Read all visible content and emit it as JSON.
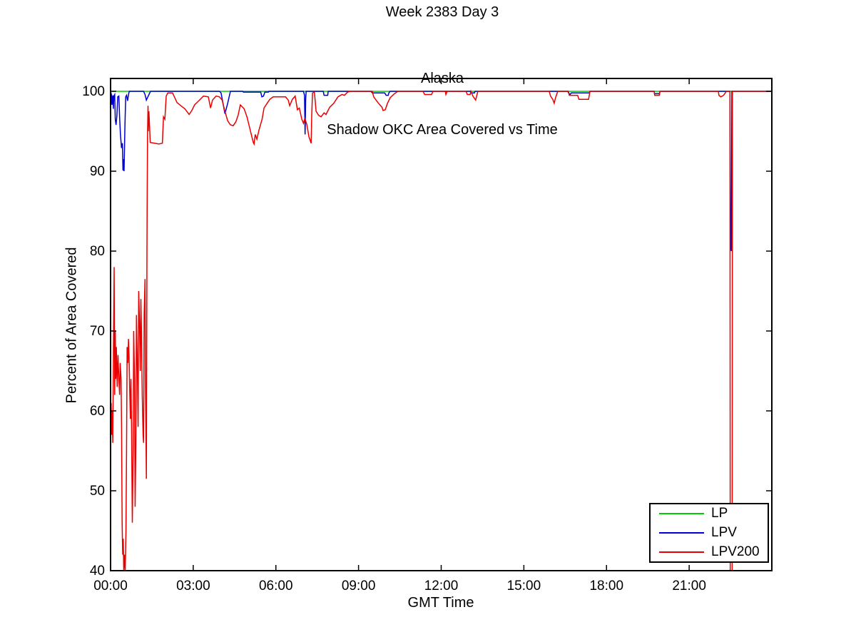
{
  "chart_data": {
    "type": "line",
    "suptitle": "Week 2383 Day 3",
    "subtitle_line1": "Alaska",
    "title": "Shadow OKC Area Covered vs Time",
    "xlabel": "GMT Time",
    "ylabel": "Percent of Area Covered",
    "x_unit": "hours GMT",
    "xlim": [
      0,
      24
    ],
    "ylim": [
      40,
      100
    ],
    "grid": false,
    "legend_position": "lower right",
    "frame_color": "#000000",
    "x_ticks": [
      {
        "t": 0,
        "label": "00:00"
      },
      {
        "t": 3,
        "label": "03:00"
      },
      {
        "t": 6,
        "label": "06:00"
      },
      {
        "t": 9,
        "label": "09:00"
      },
      {
        "t": 12,
        "label": "12:00"
      },
      {
        "t": 15,
        "label": "15:00"
      },
      {
        "t": 18,
        "label": "18:00"
      },
      {
        "t": 21,
        "label": "21:00"
      },
      {
        "t": 24,
        "label": ""
      }
    ],
    "y_ticks": [
      {
        "v": 100,
        "label": "100"
      },
      {
        "v": 90,
        "label": "90"
      },
      {
        "v": 80,
        "label": "80"
      },
      {
        "v": 70,
        "label": "70"
      },
      {
        "v": 60,
        "label": "60"
      },
      {
        "v": 50,
        "label": "50"
      },
      {
        "v": 40,
        "label": "40"
      }
    ],
    "series": [
      {
        "name": "LP",
        "color": "#00CC00",
        "points": [
          [
            0,
            100
          ],
          [
            24,
            100
          ]
        ]
      },
      {
        "name": "LPV",
        "color": "#0000CC",
        "points": [
          [
            0,
            100
          ],
          [
            0.03,
            99.6
          ],
          [
            0.05,
            98.3
          ],
          [
            0.08,
            99.5
          ],
          [
            0.1,
            97.8
          ],
          [
            0.12,
            99.4
          ],
          [
            0.15,
            99.6
          ],
          [
            0.17,
            96.5
          ],
          [
            0.2,
            95.8
          ],
          [
            0.23,
            97
          ],
          [
            0.26,
            99.3
          ],
          [
            0.3,
            99.4
          ],
          [
            0.33,
            96.7
          ],
          [
            0.36,
            94.5
          ],
          [
            0.4,
            92.9
          ],
          [
            0.43,
            93.5
          ],
          [
            0.45,
            90.1
          ],
          [
            0.47,
            91.5
          ],
          [
            0.49,
            90
          ],
          [
            0.52,
            95.5
          ],
          [
            0.55,
            99.3
          ],
          [
            0.58,
            99.5
          ],
          [
            0.62,
            98.8
          ],
          [
            0.65,
            99.6
          ],
          [
            0.68,
            100
          ],
          [
            1.2,
            100
          ],
          [
            1.25,
            99.6
          ],
          [
            1.3,
            98.9
          ],
          [
            1.38,
            99.5
          ],
          [
            1.45,
            100
          ],
          [
            3.95,
            100
          ],
          [
            4.01,
            99.8
          ],
          [
            4.08,
            98.5
          ],
          [
            4.15,
            97.2
          ],
          [
            4.25,
            98.5
          ],
          [
            4.35,
            100
          ],
          [
            4.79,
            100
          ],
          [
            4.82,
            99.9
          ],
          [
            5.45,
            99.9
          ],
          [
            5.49,
            99.3
          ],
          [
            5.55,
            99.4
          ],
          [
            5.6,
            99.9
          ],
          [
            5.73,
            99.9
          ],
          [
            5.75,
            100
          ],
          [
            7,
            100
          ],
          [
            7.04,
            99.5
          ],
          [
            7.06,
            94.6
          ],
          [
            7.08,
            99
          ],
          [
            7.1,
            100
          ],
          [
            7.72,
            100
          ],
          [
            7.75,
            99.5
          ],
          [
            7.88,
            99.5
          ],
          [
            7.9,
            100
          ],
          [
            9.45,
            100
          ],
          [
            9.5,
            99.8
          ],
          [
            9.95,
            99.8
          ],
          [
            10,
            99.5
          ],
          [
            10.08,
            99.5
          ],
          [
            10.1,
            99.8
          ],
          [
            10.15,
            100
          ],
          [
            13.05,
            100
          ],
          [
            13.08,
            99.8
          ],
          [
            13.21,
            99.8
          ],
          [
            13.23,
            100
          ],
          [
            16.6,
            100
          ],
          [
            16.62,
            99.8
          ],
          [
            16.68,
            99.6
          ],
          [
            16.72,
            99.8
          ],
          [
            17.38,
            99.8
          ],
          [
            17.4,
            100
          ],
          [
            19.73,
            100
          ],
          [
            19.74,
            99.7
          ],
          [
            19.92,
            99.7
          ],
          [
            19.94,
            100
          ],
          [
            22.48,
            100
          ],
          [
            22.5,
            80.5
          ],
          [
            22.53,
            80
          ],
          [
            22.55,
            100
          ],
          [
            24,
            100
          ]
        ]
      },
      {
        "name": "LPV200",
        "color": "#E80000",
        "points": [
          [
            0,
            56
          ],
          [
            0.02,
            61
          ],
          [
            0.04,
            57
          ],
          [
            0.06,
            60
          ],
          [
            0.08,
            56
          ],
          [
            0.1,
            66
          ],
          [
            0.13,
            78
          ],
          [
            0.15,
            62
          ],
          [
            0.17,
            70
          ],
          [
            0.19,
            64
          ],
          [
            0.21,
            68
          ],
          [
            0.24,
            63
          ],
          [
            0.27,
            67
          ],
          [
            0.3,
            64
          ],
          [
            0.33,
            62
          ],
          [
            0.35,
            66
          ],
          [
            0.38,
            64
          ],
          [
            0.4,
            58
          ],
          [
            0.42,
            46
          ],
          [
            0.44,
            42
          ],
          [
            0.46,
            44
          ],
          [
            0.48,
            40
          ],
          [
            0.51,
            42
          ],
          [
            0.53,
            40
          ],
          [
            0.56,
            45
          ],
          [
            0.58,
            55
          ],
          [
            0.6,
            68
          ],
          [
            0.63,
            66
          ],
          [
            0.65,
            69
          ],
          [
            0.67,
            67
          ],
          [
            0.7,
            62
          ],
          [
            0.72,
            59
          ],
          [
            0.74,
            64
          ],
          [
            0.76,
            58
          ],
          [
            0.79,
            46
          ],
          [
            0.82,
            55
          ],
          [
            0.84,
            70
          ],
          [
            0.87,
            64
          ],
          [
            0.89,
            48
          ],
          [
            0.92,
            56
          ],
          [
            0.94,
            72
          ],
          [
            0.97,
            66
          ],
          [
            1,
            58
          ],
          [
            1.02,
            75
          ],
          [
            1.05,
            71
          ],
          [
            1.08,
            65
          ],
          [
            1.1,
            74
          ],
          [
            1.12,
            70
          ],
          [
            1.15,
            62
          ],
          [
            1.18,
            57
          ],
          [
            1.2,
            56
          ],
          [
            1.22,
            72
          ],
          [
            1.25,
            76.5
          ],
          [
            1.27,
            62
          ],
          [
            1.3,
            51.5
          ],
          [
            1.32,
            80
          ],
          [
            1.33,
            88
          ],
          [
            1.34,
            94.3
          ],
          [
            1.36,
            98.2
          ],
          [
            1.37,
            95
          ],
          [
            1.39,
            97.5
          ],
          [
            1.41,
            96
          ],
          [
            1.44,
            93.6
          ],
          [
            1.6,
            93.5
          ],
          [
            1.75,
            93.4
          ],
          [
            1.88,
            93.5
          ],
          [
            1.92,
            96.8
          ],
          [
            1.97,
            96.5
          ],
          [
            2.02,
            99.4
          ],
          [
            2.08,
            99.8
          ],
          [
            2.25,
            99.8
          ],
          [
            2.41,
            98.6
          ],
          [
            2.55,
            98.2
          ],
          [
            2.7,
            97.8
          ],
          [
            2.85,
            97.1
          ],
          [
            2.95,
            97.6
          ],
          [
            3.05,
            98.3
          ],
          [
            3.2,
            98.8
          ],
          [
            3.37,
            99.4
          ],
          [
            3.55,
            99.3
          ],
          [
            3.63,
            97.9
          ],
          [
            3.7,
            98.9
          ],
          [
            3.83,
            99.4
          ],
          [
            3.95,
            99.3
          ],
          [
            4.05,
            98.9
          ],
          [
            4.15,
            97.5
          ],
          [
            4.25,
            96.3
          ],
          [
            4.35,
            95.8
          ],
          [
            4.45,
            95.7
          ],
          [
            4.55,
            96.2
          ],
          [
            4.63,
            97
          ],
          [
            4.71,
            98.3
          ],
          [
            4.85,
            97.8
          ],
          [
            4.95,
            96.8
          ],
          [
            5.05,
            95.4
          ],
          [
            5.1,
            94.7
          ],
          [
            5.18,
            93.6
          ],
          [
            5.21,
            93.4
          ],
          [
            5.25,
            94.6
          ],
          [
            5.31,
            94
          ],
          [
            5.39,
            95.2
          ],
          [
            5.5,
            96.5
          ],
          [
            5.57,
            97.9
          ],
          [
            5.7,
            98.6
          ],
          [
            5.78,
            99
          ],
          [
            5.9,
            99.3
          ],
          [
            6.35,
            99.3
          ],
          [
            6.45,
            98.9
          ],
          [
            6.5,
            98.2
          ],
          [
            6.6,
            99
          ],
          [
            6.7,
            99.4
          ],
          [
            6.78,
            97.7
          ],
          [
            6.85,
            97.9
          ],
          [
            6.94,
            96.5
          ],
          [
            7,
            96
          ],
          [
            7.05,
            96.6
          ],
          [
            7.12,
            95.9
          ],
          [
            7.2,
            94.3
          ],
          [
            7.28,
            93.5
          ],
          [
            7.3,
            97
          ],
          [
            7.33,
            99.8
          ],
          [
            7.4,
            99.9
          ],
          [
            7.46,
            97.5
          ],
          [
            7.55,
            97
          ],
          [
            7.64,
            96.8
          ],
          [
            7.75,
            97.3
          ],
          [
            7.82,
            97.1
          ],
          [
            7.95,
            98
          ],
          [
            8.1,
            98.5
          ],
          [
            8.25,
            99.3
          ],
          [
            8.4,
            99.6
          ],
          [
            8.49,
            99.5
          ],
          [
            8.6,
            99.9
          ],
          [
            8.7,
            100
          ],
          [
            9.5,
            100
          ],
          [
            9.55,
            99.3
          ],
          [
            9.7,
            98.6
          ],
          [
            9.85,
            98
          ],
          [
            9.89,
            97.6
          ],
          [
            9.97,
            97.7
          ],
          [
            10.05,
            98.5
          ],
          [
            10.15,
            99.2
          ],
          [
            10.3,
            99.7
          ],
          [
            10.43,
            100
          ],
          [
            11.34,
            100
          ],
          [
            11.4,
            99.6
          ],
          [
            11.65,
            99.6
          ],
          [
            11.7,
            100
          ],
          [
            12.15,
            100
          ],
          [
            12.17,
            99.6
          ],
          [
            12.22,
            100
          ],
          [
            12.9,
            100
          ],
          [
            12.95,
            99.6
          ],
          [
            13.05,
            99.6
          ],
          [
            13.08,
            100
          ],
          [
            13.15,
            99.4
          ],
          [
            13.25,
            98.9
          ],
          [
            13.33,
            100
          ],
          [
            15.92,
            100
          ],
          [
            15.97,
            99.4
          ],
          [
            16.05,
            99
          ],
          [
            16.1,
            98.5
          ],
          [
            16.15,
            99.2
          ],
          [
            16.23,
            100
          ],
          [
            16.62,
            100
          ],
          [
            16.65,
            99.5
          ],
          [
            16.95,
            99.5
          ],
          [
            17,
            99
          ],
          [
            17.35,
            99
          ],
          [
            17.4,
            100
          ],
          [
            19.73,
            100
          ],
          [
            19.75,
            99.5
          ],
          [
            19.92,
            99.5
          ],
          [
            19.94,
            100
          ],
          [
            22.06,
            100
          ],
          [
            22.08,
            99.5
          ],
          [
            22.15,
            99.3
          ],
          [
            22.25,
            99.5
          ],
          [
            22.35,
            100
          ],
          [
            22.48,
            100
          ],
          [
            22.49,
            40
          ],
          [
            22.56,
            40
          ],
          [
            22.57,
            100
          ],
          [
            24,
            100
          ]
        ]
      }
    ]
  }
}
